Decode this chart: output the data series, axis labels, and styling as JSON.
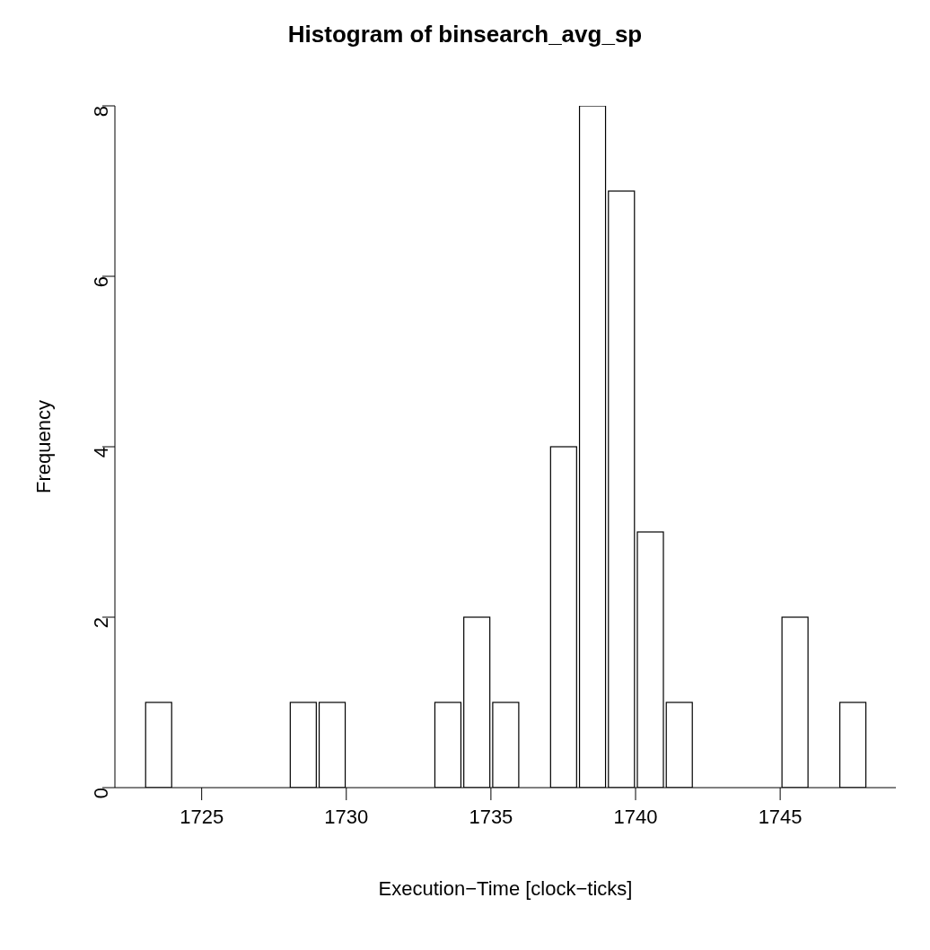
{
  "chart_data": {
    "type": "histogram",
    "title": "Histogram of binsearch_avg_sp",
    "xlabel": "Execution−Time [clock−ticks]",
    "ylabel": "Frequency",
    "bins": [
      1723,
      1724,
      1725,
      1726,
      1727,
      1728,
      1729,
      1730,
      1731,
      1732,
      1733,
      1734,
      1735,
      1736,
      1737,
      1738,
      1739,
      1740,
      1741,
      1742,
      1743,
      1744,
      1745,
      1746,
      1747,
      1748
    ],
    "values": [
      1,
      0,
      0,
      0,
      0,
      1,
      1,
      0,
      0,
      0,
      1,
      2,
      1,
      0,
      4,
      8,
      7,
      3,
      1,
      0,
      0,
      0,
      2,
      0,
      1
    ],
    "color": "#ffffff",
    "xlim": [
      1722,
      1749
    ],
    "xticks": [
      1725,
      1730,
      1735,
      1740,
      1745
    ],
    "ylim": [
      0,
      8
    ],
    "yticks": [
      0,
      2,
      4,
      6,
      8
    ]
  }
}
